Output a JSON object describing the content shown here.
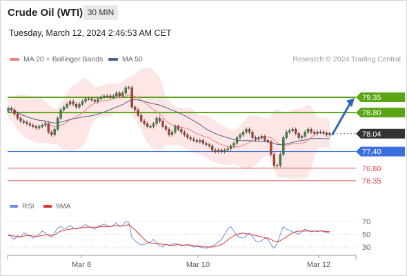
{
  "header": {
    "instrument": "Crude Oil (WTI)",
    "timeframe": "30 MIN",
    "timestamp": "Tuesday, March 12, 2024 2:46:53 AM CET"
  },
  "legend": {
    "ma20_label": "MA 20 + Bollinger Bands",
    "ma50_label": "MA 50",
    "rsi_label": "RSI",
    "rsi_ma_label": "9MA"
  },
  "credit": "Research © 2024 Trading Central",
  "colors": {
    "ma20": "#f08080",
    "ma50": "#4a5f8f",
    "bands": "#fde3e3",
    "resistance": "#5aa514",
    "support_blue": "#3b6fe0",
    "target_red": "#e05050",
    "forecast_arrow": "#2c66b8",
    "current_price_tag": "#333333",
    "candle_up": "#3c8c3c",
    "candle_down": "#c0392b",
    "rsi": "#6b8ee0",
    "rsi_ma": "#e03030"
  },
  "chart_data": {
    "type": "candlestick",
    "price_axis": {
      "min": 75.9,
      "max": 79.9
    },
    "levels": [
      {
        "value": 79.35,
        "label": "79.35",
        "kind": "resistance"
      },
      {
        "value": 78.8,
        "label": "78.80",
        "kind": "resistance"
      },
      {
        "value": 78.04,
        "label": "78.04",
        "kind": "current"
      },
      {
        "value": 77.4,
        "label": "77.40",
        "kind": "pivot"
      },
      {
        "value": 76.8,
        "label": "76.80",
        "kind": "support"
      },
      {
        "value": 76.35,
        "label": "76.35",
        "kind": "support"
      }
    ],
    "forecast": {
      "from": 78.04,
      "to": 79.35,
      "direction": "up"
    },
    "candles_close": [
      78.95,
      78.9,
      78.75,
      78.6,
      78.5,
      78.45,
      78.4,
      78.35,
      78.3,
      78.25,
      78.3,
      78.35,
      78.4,
      78.1,
      78.0,
      78.2,
      78.6,
      78.9,
      79.0,
      79.1,
      79.2,
      79.1,
      79.0,
      79.1,
      79.2,
      79.3,
      79.3,
      79.25,
      79.2,
      79.3,
      79.35,
      79.4,
      79.4,
      79.35,
      79.4,
      79.5,
      79.4,
      79.5,
      79.7,
      79.7,
      79.0,
      78.9,
      78.7,
      78.5,
      78.4,
      78.3,
      78.3,
      78.4,
      78.6,
      78.5,
      78.3,
      78.2,
      78.0,
      78.1,
      78.3,
      78.2,
      78.1,
      78.0,
      77.9,
      77.85,
      77.8,
      77.75,
      77.8,
      77.7,
      77.65,
      77.6,
      77.45,
      77.4,
      77.45,
      77.4,
      77.45,
      77.5,
      77.6,
      77.7,
      77.9,
      78.0,
      78.1,
      78.2,
      78.1,
      77.9,
      77.85,
      77.9,
      77.95,
      77.8,
      77.75,
      77.3,
      76.9,
      76.9,
      77.3,
      77.9,
      78.1,
      78.15,
      78.2,
      78.05,
      77.9,
      77.95,
      78.1,
      78.2,
      78.1,
      78.05,
      78.1,
      78.1,
      78.05,
      78.0,
      78.04
    ],
    "candles_open": [
      78.85,
      78.95,
      78.9,
      78.75,
      78.6,
      78.5,
      78.45,
      78.4,
      78.35,
      78.3,
      78.25,
      78.3,
      78.35,
      78.4,
      78.1,
      78.0,
      78.2,
      78.6,
      78.9,
      79.0,
      79.1,
      79.2,
      79.1,
      79.0,
      79.1,
      79.2,
      79.3,
      79.3,
      79.25,
      79.2,
      79.3,
      79.35,
      79.4,
      79.4,
      79.35,
      79.4,
      79.5,
      79.4,
      79.5,
      79.7,
      79.7,
      79.0,
      78.9,
      78.7,
      78.5,
      78.4,
      78.3,
      78.3,
      78.4,
      78.6,
      78.5,
      78.3,
      78.2,
      78.0,
      78.1,
      78.3,
      78.2,
      78.1,
      78.0,
      77.9,
      77.85,
      77.8,
      77.75,
      77.8,
      77.7,
      77.65,
      77.6,
      77.45,
      77.4,
      77.45,
      77.4,
      77.45,
      77.5,
      77.6,
      77.7,
      77.9,
      78.0,
      78.1,
      78.2,
      78.1,
      77.9,
      77.85,
      77.9,
      77.95,
      77.8,
      77.75,
      77.3,
      76.9,
      76.9,
      77.3,
      77.9,
      78.1,
      78.15,
      78.2,
      78.05,
      77.9,
      77.95,
      78.1,
      78.2,
      78.1,
      78.05,
      78.1,
      78.1,
      78.05,
      78.0
    ],
    "rsi_axis": {
      "min": 20,
      "max": 80,
      "ticks": [
        "70",
        "50",
        "30"
      ]
    },
    "rsi_values": [
      50,
      46,
      42,
      48,
      45,
      52,
      50,
      48,
      44,
      46,
      50,
      55,
      52,
      48,
      45,
      52,
      60,
      62,
      58,
      60,
      64,
      60,
      58,
      60,
      62,
      65,
      62,
      60,
      58,
      62,
      64,
      66,
      63,
      62,
      64,
      68,
      62,
      64,
      70,
      68,
      45,
      40,
      36,
      33,
      34,
      36,
      38,
      42,
      36,
      32,
      30,
      34,
      32,
      34,
      36,
      34,
      32,
      33,
      34,
      32,
      30,
      31,
      30,
      29,
      28,
      30,
      32,
      34,
      38,
      42,
      50,
      58,
      62,
      55,
      48,
      45,
      44,
      48,
      52,
      46,
      40,
      38,
      40,
      44,
      42,
      34,
      28,
      35,
      50,
      62,
      58,
      56,
      54,
      52,
      50,
      54,
      58,
      56,
      54,
      55,
      54,
      56,
      54,
      52,
      52
    ],
    "rsi_ma_values": [
      48,
      48,
      47,
      46,
      46,
      47,
      48,
      48,
      47,
      47,
      47,
      48,
      49,
      49,
      48,
      49,
      52,
      55,
      56,
      57,
      58,
      59,
      59,
      60,
      60,
      61,
      61,
      61,
      61,
      61,
      62,
      62,
      62,
      62,
      63,
      64,
      63,
      63,
      64,
      65,
      61,
      57,
      52,
      47,
      42,
      38,
      36,
      36,
      36,
      35,
      34,
      34,
      33,
      33,
      33,
      34,
      33,
      33,
      33,
      33,
      32,
      32,
      31,
      31,
      30,
      30,
      30,
      31,
      32,
      34,
      37,
      41,
      45,
      48,
      50,
      51,
      52,
      51,
      50,
      49,
      48,
      47,
      46,
      45,
      44,
      42,
      39,
      38,
      40,
      43,
      46,
      49,
      52,
      54,
      55,
      55,
      55,
      55,
      55,
      55,
      55,
      55,
      55,
      54,
      54
    ],
    "x_axis_labels": [
      "Mar 8",
      "Mar 10",
      "Mar 12"
    ]
  }
}
